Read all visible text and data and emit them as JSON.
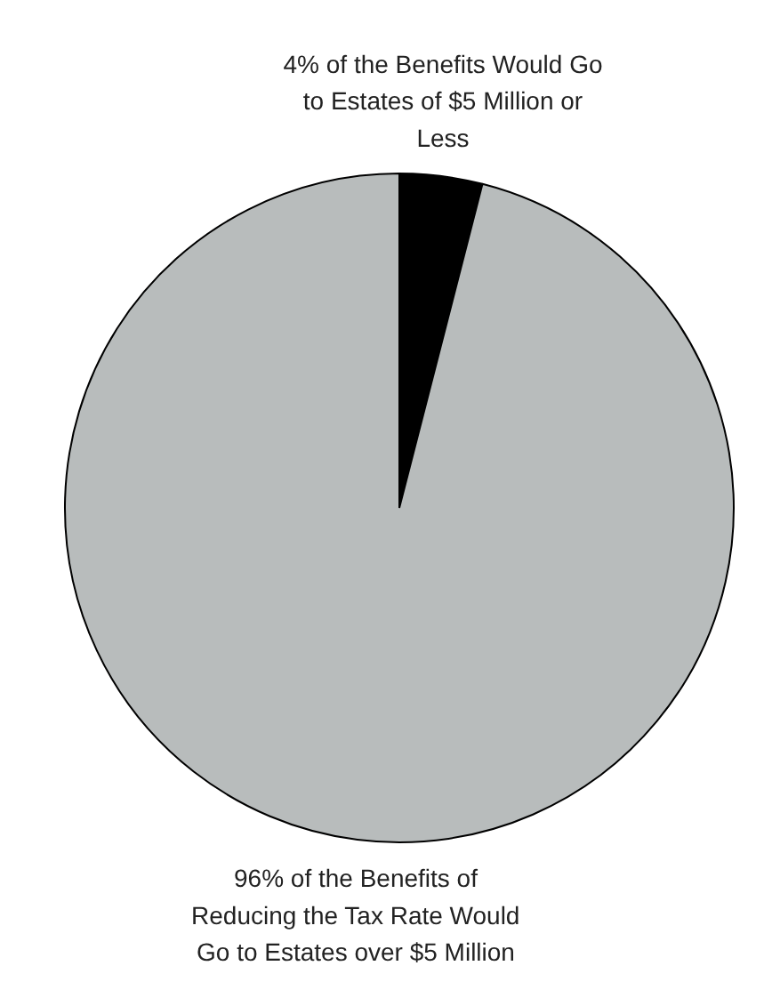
{
  "chart_data": {
    "type": "pie",
    "categories": [
      "4% of the Benefits Would Go to Estates of $5 Million or Less",
      "96% of the Benefits of Reducing the Tax Rate Would Go to Estates over $5 Million"
    ],
    "values": [
      4,
      96
    ],
    "colors": [
      "#000000",
      "#b8bcbc"
    ]
  }
}
